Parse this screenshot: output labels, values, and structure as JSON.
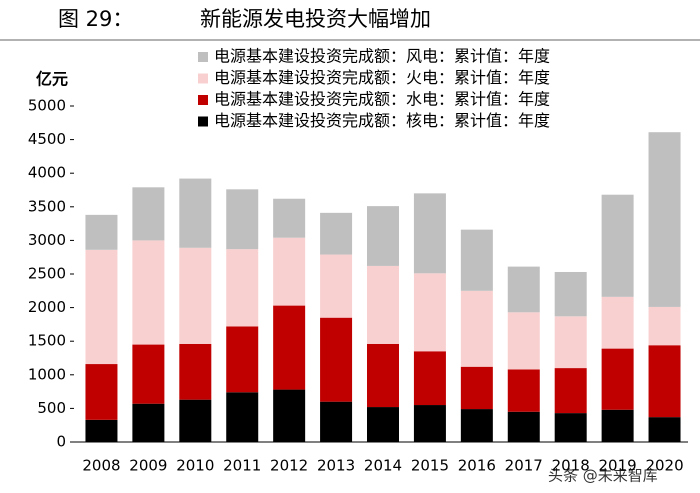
{
  "chart_data": {
    "type": "stacked_bar",
    "figure_label": "图 29：",
    "title": "新能源发电投资大幅增加",
    "y_label": "亿元",
    "watermark": "头条 @未来智库",
    "categories": [
      "2008",
      "2009",
      "2010",
      "2011",
      "2012",
      "2013",
      "2014",
      "2015",
      "2016",
      "2017",
      "2018",
      "2019",
      "2020"
    ],
    "series": [
      {
        "name": "电源基本建设投资完成额：风电：累计值：年度",
        "color": "#bfbfbf",
        "values": [
          520,
          790,
          1030,
          890,
          580,
          620,
          890,
          1190,
          910,
          680,
          660,
          1520,
          2600
        ]
      },
      {
        "name": "电源基本建设投资完成额：火电：累计值：年度",
        "color": "#f8d0d0",
        "values": [
          1700,
          1550,
          1430,
          1150,
          1010,
          940,
          1160,
          1160,
          1130,
          850,
          770,
          770,
          570
        ]
      },
      {
        "name": "电源基本建设投资完成额：水电：累计值：年度",
        "color": "#c00000",
        "values": [
          830,
          880,
          830,
          980,
          1250,
          1250,
          940,
          800,
          630,
          630,
          670,
          910,
          1070
        ]
      },
      {
        "name": "电源基本建设投资完成额：核电：累计值：年度",
        "color": "#000000",
        "values": [
          330,
          570,
          630,
          740,
          780,
          600,
          520,
          550,
          490,
          450,
          430,
          480,
          370
        ]
      }
    ],
    "ylim": [
      0,
      5000
    ],
    "yticks": [
      0,
      500,
      1000,
      1500,
      2000,
      2500,
      3000,
      3500,
      4000,
      4500,
      5000
    ],
    "grid": false
  }
}
